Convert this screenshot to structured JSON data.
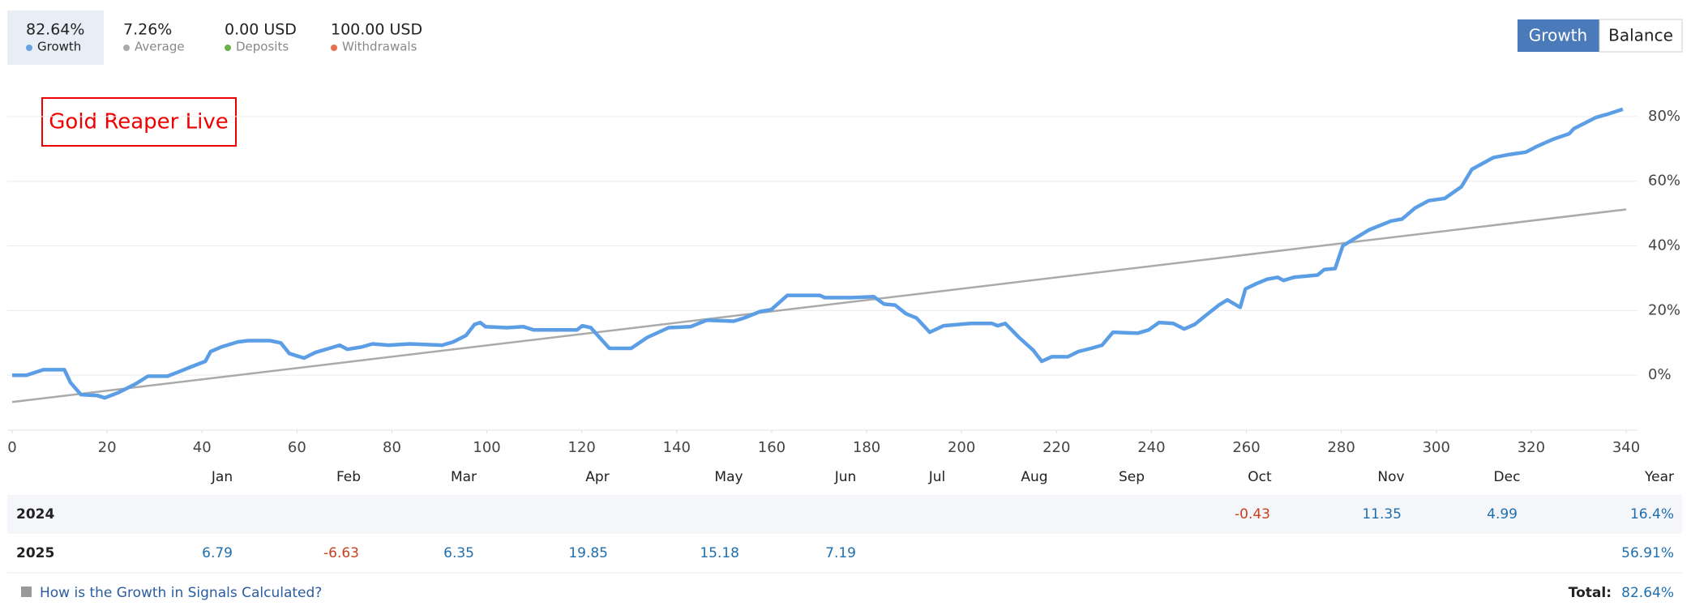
{
  "stats": [
    {
      "value": "82.64%",
      "color": "#6aa3e0"
    },
    {
      "value": "7.26%",
      "color": "#aaaaaa"
    },
    {
      "value": "0.00 USD",
      "label": "Deposits",
      "color": "#6ab04c"
    },
    {
      "value": "100.00 USD",
      "label": "Withdrawals",
      "color": "#e8704c"
    }
  ],
  "toggle": [
    "Growth",
    "Balance"
  ],
  "chart_data": {
    "type": "line",
    "annotation": "Gold Reaper Live",
    "series": [
      {
        "name": "Growth",
        "color": "#5b9ee6",
        "x": [
          0,
          3,
          6.6,
          11,
          12.3,
          14.5,
          18,
          19.5,
          22.5,
          26,
          28.6,
          32.7,
          35,
          37.2,
          40.7,
          41.8,
          44,
          47.5,
          49.7,
          54.3,
          56.6,
          58.4,
          59.9,
          61.5,
          63.8,
          66.8,
          69,
          70.6,
          73.6,
          75.9,
          79.3,
          83.8,
          90.6,
          92.9,
          95.6,
          97.4,
          98.6,
          99.7,
          104.2,
          107.7,
          109.9,
          115.6,
          119,
          120.1,
          121.9,
          125.8,
          130.4,
          133.8,
          138.3,
          142.9,
          146.3,
          152,
          154.2,
          157.6,
          159.9,
          163.3,
          170.1,
          171.2,
          176.9,
          181.5,
          183.7,
          186,
          188.3,
          190.5,
          193.3,
          196.2,
          201.9,
          206.4,
          207.6,
          209.2,
          212.1,
          215.1,
          216.9,
          219,
          222.4,
          224.6,
          227.3,
          229.6,
          231.9,
          237.1,
          239.4,
          241.6,
          244.6,
          246.9,
          249.1,
          251.9,
          254.2,
          256,
          258.7,
          259.8,
          262.1,
          264.4,
          266.6,
          267.8,
          270,
          275,
          276.4,
          278.7,
          280.3,
          282.5,
          285.9,
          290.5,
          292.8,
          295.5,
          298.4,
          301.8,
          305.3,
          307.5,
          312,
          315.5,
          318.9,
          321.1,
          324.6,
          328,
          329,
          333.6,
          336,
          339.3
        ],
        "values": [
          0,
          0,
          1.7,
          1.7,
          -2.3,
          -6,
          -6.3,
          -7,
          -5.3,
          -2.7,
          -0.3,
          -0.3,
          1,
          2.3,
          4.3,
          7.3,
          8.7,
          10.3,
          10.7,
          10.7,
          10,
          6.7,
          6,
          5.3,
          7,
          8.3,
          9.3,
          8,
          8.7,
          9.7,
          9.3,
          9.7,
          9.3,
          10.3,
          12.3,
          15.7,
          16.3,
          15,
          14.7,
          15,
          14,
          14,
          14,
          15.3,
          14.7,
          8.3,
          8.3,
          11.7,
          14.7,
          15,
          17,
          16.7,
          17.7,
          19.7,
          20.3,
          24.7,
          24.7,
          24,
          24,
          24.3,
          22,
          21.7,
          19,
          17.7,
          13.3,
          15.3,
          16,
          16,
          15.3,
          16,
          11.7,
          7.7,
          4.3,
          5.7,
          5.7,
          7.3,
          8.3,
          9.3,
          13.3,
          13,
          14,
          16.3,
          16,
          14.3,
          15.7,
          19,
          21.7,
          23.3,
          21,
          26.7,
          28.3,
          29.7,
          30.3,
          29.3,
          30.3,
          31,
          32.7,
          33,
          40,
          42,
          45,
          47.7,
          48.3,
          51.7,
          54,
          54.7,
          58.3,
          63.7,
          67.3,
          68.3,
          69,
          70.7,
          73,
          74.7,
          76.3,
          79.7,
          80.7,
          82.3
        ]
      },
      {
        "name": "Average",
        "color": "#aaaaaa",
        "x": [
          0,
          340
        ],
        "values": [
          -8.3,
          51.3
        ]
      }
    ],
    "xlim": [
      0,
      340
    ],
    "xticks": [
      0,
      20,
      40,
      60,
      80,
      100,
      120,
      140,
      160,
      180,
      200,
      220,
      240,
      260,
      280,
      300,
      320,
      340
    ],
    "ylim": [
      -17,
      88
    ],
    "yticks": [
      {
        "value": 0,
        "label": "0%"
      },
      {
        "value": 20,
        "label": "20%"
      },
      {
        "value": 40,
        "label": "40%"
      },
      {
        "value": 60,
        "label": "60%"
      },
      {
        "value": 80,
        "label": "80%"
      }
    ],
    "grid": true
  },
  "table": {
    "columns": [
      "Jan",
      "Feb",
      "Mar",
      "Apr",
      "May",
      "Jun",
      "Jul",
      "Aug",
      "Sep",
      "Oct",
      "Nov",
      "Dec",
      "Year"
    ],
    "rows": [
      {
        "year": "2024",
        "cells": [
          null,
          null,
          null,
          null,
          null,
          null,
          null,
          null,
          null,
          -0.43,
          11.35,
          4.99
        ],
        "total": "16.4%"
      },
      {
        "year": "2025",
        "cells": [
          6.79,
          -6.63,
          6.35,
          19.85,
          15.18,
          7.19,
          null,
          null,
          null,
          null,
          null,
          null
        ],
        "total": "56.91%"
      }
    ]
  },
  "footer": {
    "link": "How is the Growth in Signals Calculated?",
    "total_label": "Total:",
    "total": "82.64%"
  }
}
